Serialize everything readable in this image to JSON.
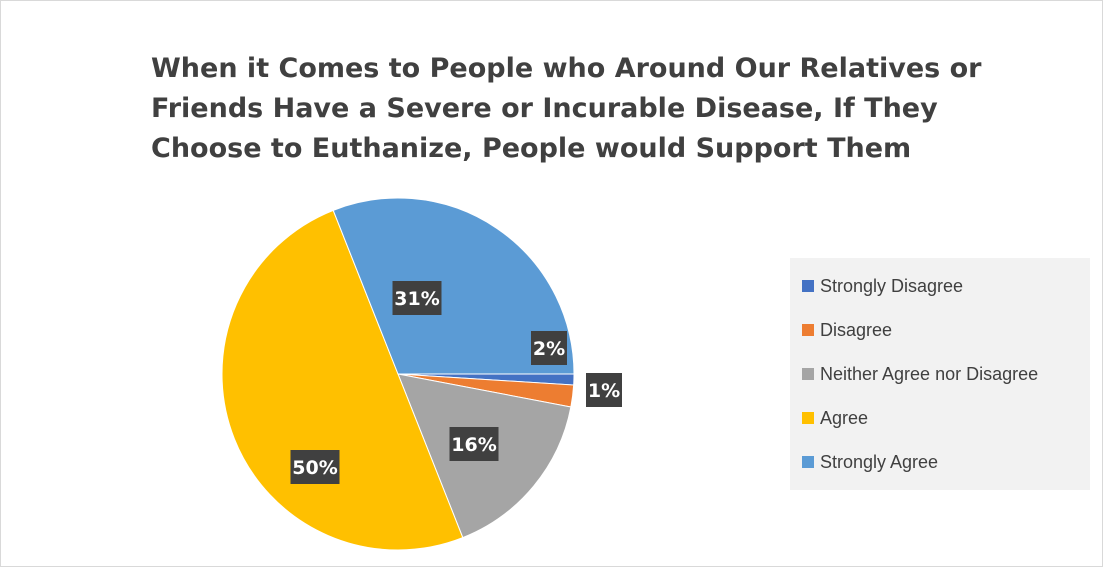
{
  "chart_data": {
    "type": "pie",
    "title_lines": [
      "When it Comes to People who Around Our Relatives or",
      "Friends Have a Severe or Incurable Disease, If They",
      "Choose to Euthanize, People would Support Them"
    ],
    "categories": [
      "Strongly Disagree",
      "Disagree",
      "Neither Agree nor Disagree",
      "Agree",
      "Strongly Agree"
    ],
    "values": [
      1,
      2,
      16,
      50,
      31
    ],
    "data_labels": [
      "1%",
      "2%",
      "16%",
      "50%",
      "31%"
    ],
    "colors": [
      "#4472c4",
      "#ed7d31",
      "#a5a5a5",
      "#ffc000",
      "#5b9bd5"
    ],
    "legend_position": "right"
  }
}
